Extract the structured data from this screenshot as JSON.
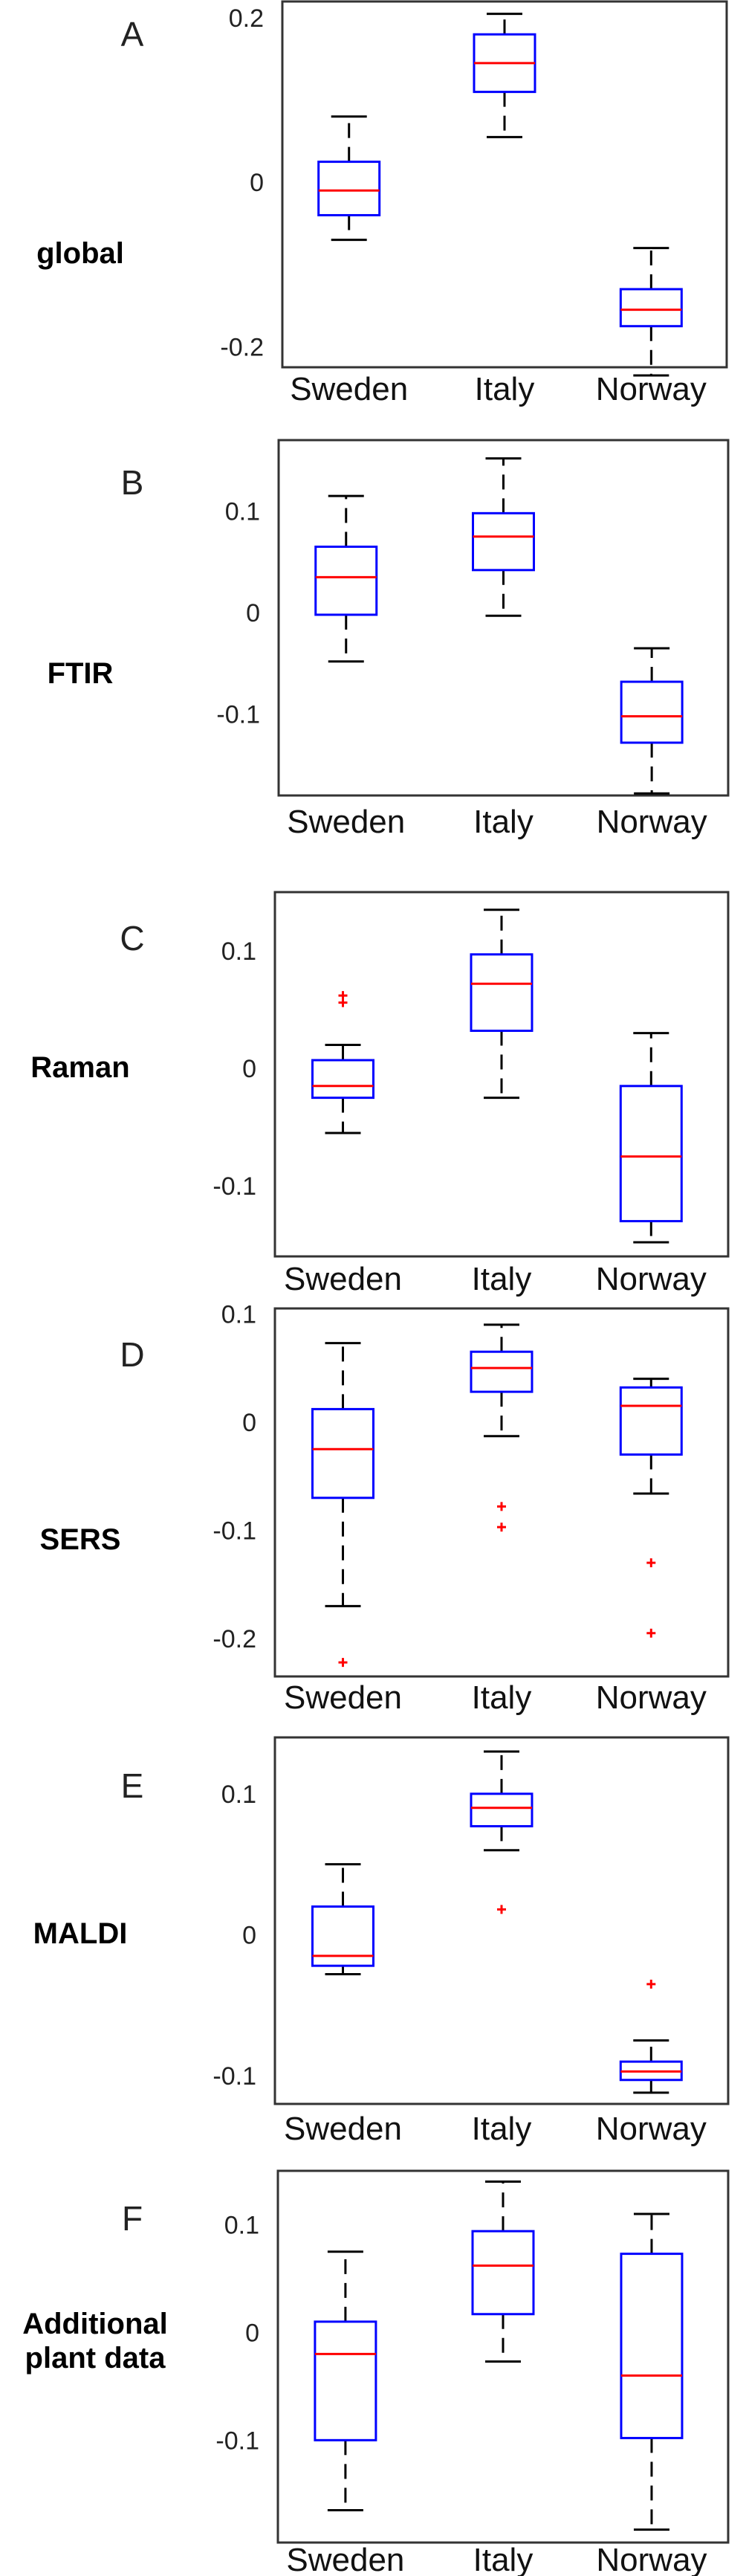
{
  "chart_data": [
    {
      "type": "box",
      "letter": "A",
      "row_label": [
        "global"
      ],
      "categories": [
        "Sweden",
        "Italy",
        "Norway"
      ],
      "ylim": [
        -0.225,
        0.22
      ],
      "yticks": [
        {
          "value": 0.2,
          "label": "0.2"
        },
        {
          "value": 0,
          "label": "0"
        },
        {
          "value": -0.2,
          "label": "-0.2"
        }
      ],
      "boxes": [
        {
          "q1": -0.04,
          "median": -0.01,
          "q3": 0.025,
          "whisker_low": -0.07,
          "whisker_high": 0.08,
          "outliers": []
        },
        {
          "q1": 0.11,
          "median": 0.145,
          "q3": 0.18,
          "whisker_low": 0.055,
          "whisker_high": 0.205,
          "outliers": []
        },
        {
          "q1": -0.175,
          "median": -0.155,
          "q3": -0.13,
          "whisker_low": -0.235,
          "whisker_high": -0.08,
          "outliers": []
        }
      ]
    },
    {
      "type": "box",
      "letter": "B",
      "row_label": [
        "FTIR"
      ],
      "categories": [
        "Sweden",
        "Italy",
        "Norway"
      ],
      "ylim": [
        -0.18,
        0.17
      ],
      "yticks": [
        {
          "value": 0.1,
          "label": "0.1"
        },
        {
          "value": 0,
          "label": "0"
        },
        {
          "value": -0.1,
          "label": "-0.1"
        }
      ],
      "boxes": [
        {
          "q1": -0.002,
          "median": 0.035,
          "q3": 0.065,
          "whisker_low": -0.048,
          "whisker_high": 0.115,
          "outliers": []
        },
        {
          "q1": 0.042,
          "median": 0.075,
          "q3": 0.098,
          "whisker_low": -0.003,
          "whisker_high": 0.152,
          "outliers": []
        },
        {
          "q1": -0.128,
          "median": -0.102,
          "q3": -0.068,
          "whisker_low": -0.178,
          "whisker_high": -0.035,
          "outliers": []
        }
      ]
    },
    {
      "type": "box",
      "letter": "C",
      "row_label": [
        "Raman"
      ],
      "categories": [
        "Sweden",
        "Italy",
        "Norway"
      ],
      "ylim": [
        -0.16,
        0.15
      ],
      "yticks": [
        {
          "value": 0.1,
          "label": "0.1"
        },
        {
          "value": 0,
          "label": "0"
        },
        {
          "value": -0.1,
          "label": "-0.1"
        }
      ],
      "boxes": [
        {
          "q1": -0.025,
          "median": -0.015,
          "q3": 0.007,
          "whisker_low": -0.055,
          "whisker_high": 0.02,
          "outliers": [
            0.056,
            0.062
          ]
        },
        {
          "q1": 0.032,
          "median": 0.072,
          "q3": 0.097,
          "whisker_low": -0.025,
          "whisker_high": 0.135,
          "outliers": []
        },
        {
          "q1": -0.13,
          "median": -0.075,
          "q3": -0.015,
          "whisker_low": -0.148,
          "whisker_high": 0.03,
          "outliers": []
        }
      ]
    },
    {
      "type": "box",
      "letter": "D",
      "row_label": [
        "SERS"
      ],
      "categories": [
        "Sweden",
        "Italy",
        "Norway"
      ],
      "ylim": [
        -0.235,
        0.105
      ],
      "yticks": [
        {
          "value": 0.1,
          "label": "0.1"
        },
        {
          "value": 0,
          "label": "0"
        },
        {
          "value": -0.1,
          "label": "-0.1"
        },
        {
          "value": -0.2,
          "label": "-0.2"
        }
      ],
      "boxes": [
        {
          "q1": -0.07,
          "median": -0.025,
          "q3": 0.012,
          "whisker_low": -0.17,
          "whisker_high": 0.073,
          "outliers": [
            -0.222
          ]
        },
        {
          "q1": 0.028,
          "median": 0.05,
          "q3": 0.065,
          "whisker_low": -0.013,
          "whisker_high": 0.09,
          "outliers": [
            -0.078,
            -0.097
          ]
        },
        {
          "q1": -0.03,
          "median": 0.015,
          "q3": 0.032,
          "whisker_low": -0.066,
          "whisker_high": 0.04,
          "outliers": [
            -0.13,
            -0.195
          ]
        }
      ]
    },
    {
      "type": "box",
      "letter": "E",
      "row_label": [
        "MALDI"
      ],
      "categories": [
        "Sweden",
        "Italy",
        "Norway"
      ],
      "ylim": [
        -0.12,
        0.14
      ],
      "yticks": [
        {
          "value": 0.1,
          "label": "0.1"
        },
        {
          "value": 0,
          "label": "0"
        },
        {
          "value": -0.1,
          "label": "-0.1"
        }
      ],
      "boxes": [
        {
          "q1": -0.022,
          "median": -0.015,
          "q3": 0.02,
          "whisker_low": -0.028,
          "whisker_high": 0.05,
          "outliers": []
        },
        {
          "q1": 0.077,
          "median": 0.09,
          "q3": 0.1,
          "whisker_low": 0.06,
          "whisker_high": 0.13,
          "outliers": [
            0.018
          ]
        },
        {
          "q1": -0.103,
          "median": -0.097,
          "q3": -0.09,
          "whisker_low": -0.112,
          "whisker_high": -0.075,
          "outliers": [
            -0.035
          ]
        }
      ]
    },
    {
      "type": "box",
      "letter": "F",
      "row_label": [
        "Additional",
        "plant data"
      ],
      "categories": [
        "Sweden",
        "Italy",
        "Norway"
      ],
      "ylim": [
        -0.195,
        0.15
      ],
      "yticks": [
        {
          "value": 0.1,
          "label": "0.1"
        },
        {
          "value": 0,
          "label": "0"
        },
        {
          "value": -0.1,
          "label": "-0.1"
        }
      ],
      "boxes": [
        {
          "q1": -0.1,
          "median": -0.02,
          "q3": 0.01,
          "whisker_low": -0.165,
          "whisker_high": 0.075,
          "outliers": []
        },
        {
          "q1": 0.017,
          "median": 0.062,
          "q3": 0.094,
          "whisker_low": -0.027,
          "whisker_high": 0.14,
          "outliers": []
        },
        {
          "q1": -0.098,
          "median": -0.04,
          "q3": 0.073,
          "whisker_low": -0.183,
          "whisker_high": 0.11,
          "outliers": []
        }
      ]
    }
  ]
}
